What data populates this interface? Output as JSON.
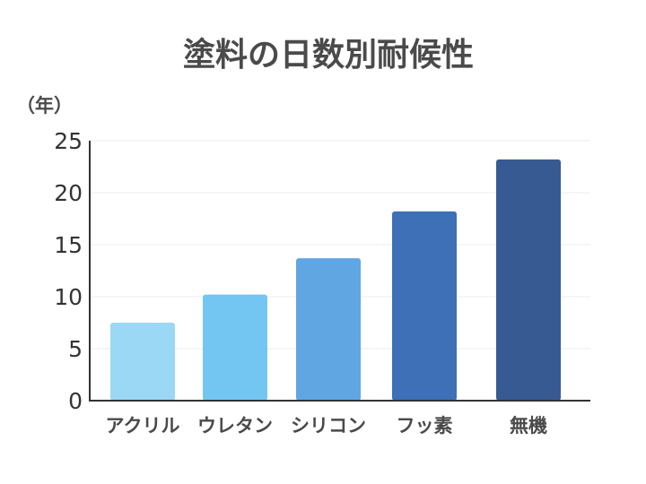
{
  "chart_data": {
    "type": "bar",
    "title": "塗料の日数別耐候性",
    "ylabel": "（年）",
    "xlabel": "",
    "categories": [
      "アクリル",
      "ウレタン",
      "シリコン",
      "フッ素",
      "無機"
    ],
    "values": [
      7.5,
      10.2,
      13.7,
      18.2,
      23.2
    ],
    "colors": [
      "#9ad8f5",
      "#74c6f2",
      "#5fa6e3",
      "#3d70b6",
      "#385a92"
    ],
    "ylim": [
      0,
      25
    ],
    "yticks": [
      0,
      5,
      10,
      15,
      20,
      25
    ],
    "grid": true,
    "legend": "none"
  }
}
